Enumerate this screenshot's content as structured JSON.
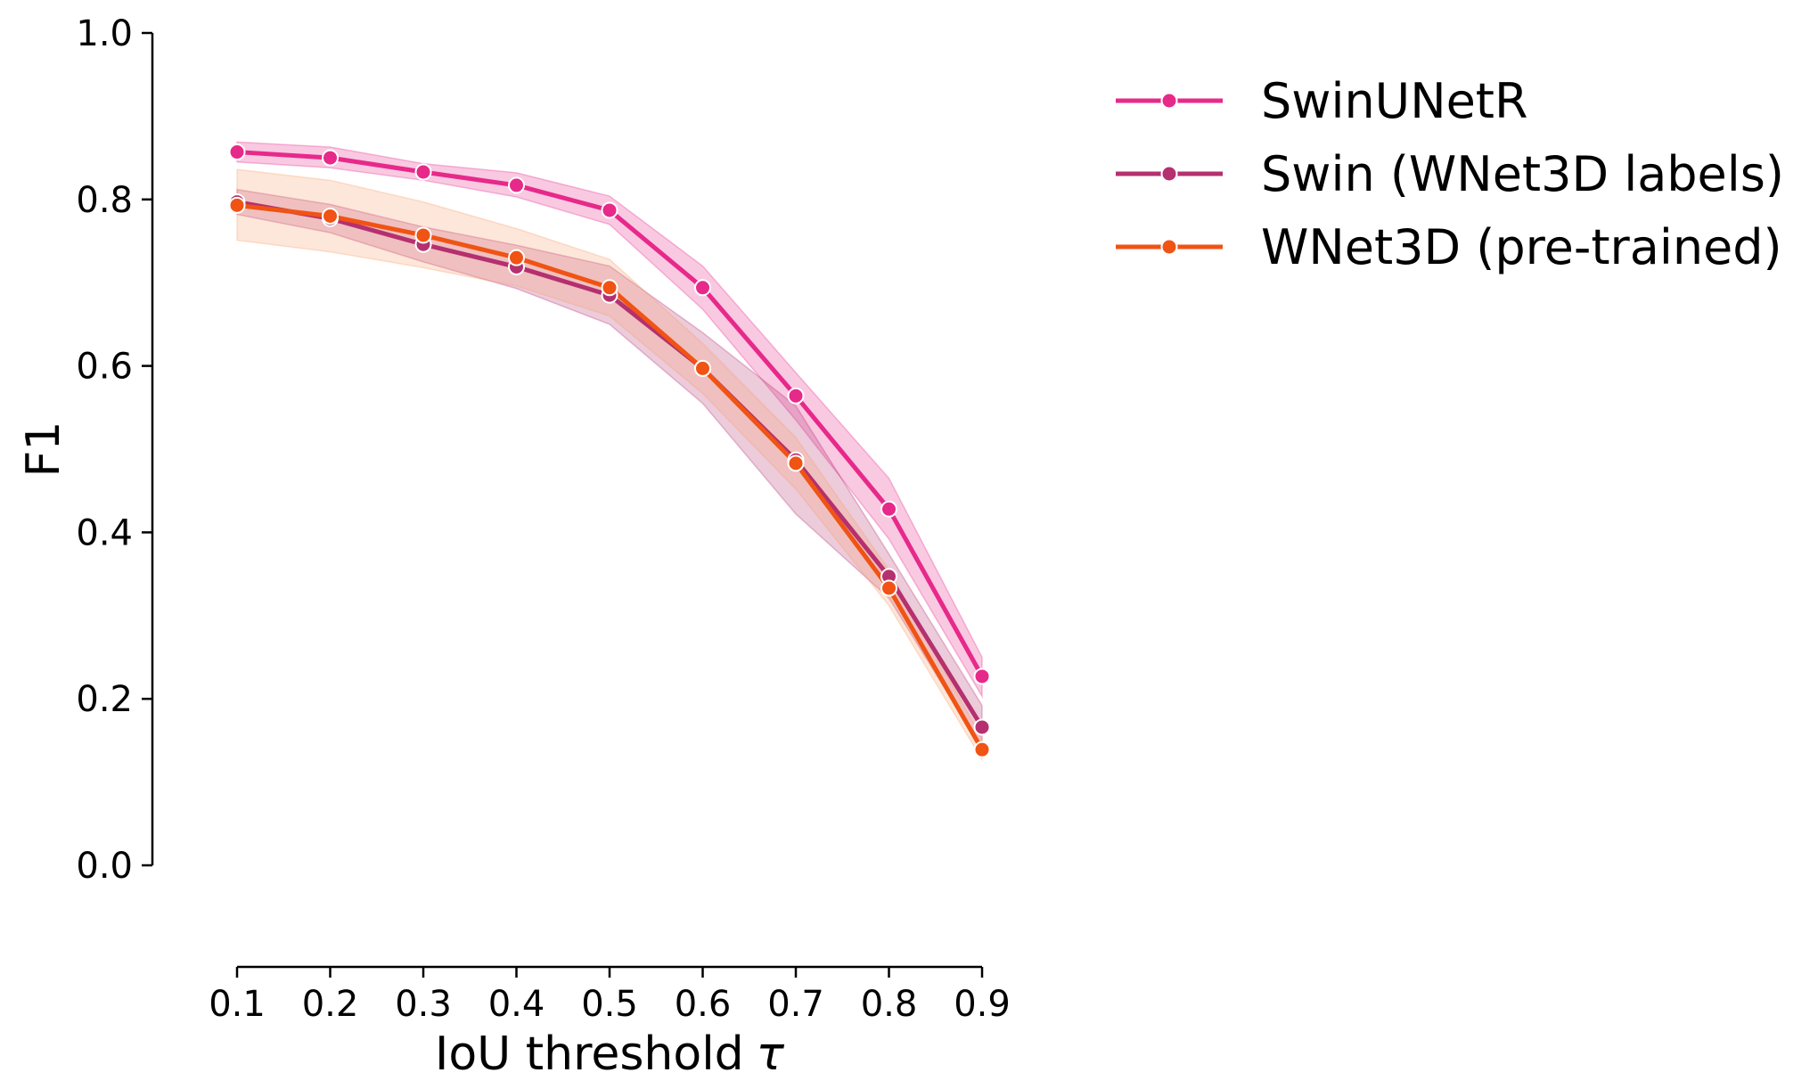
{
  "chart_data": {
    "type": "line",
    "title": "",
    "xlabel": "IoU threshold",
    "xlabel_symbol": "τ",
    "ylabel": "F1",
    "x": [
      0.1,
      0.2,
      0.3,
      0.4,
      0.5,
      0.6,
      0.7,
      0.8,
      0.9
    ],
    "x_tick_labels": [
      "0.1",
      "0.2",
      "0.3",
      "0.4",
      "0.5",
      "0.6",
      "0.7",
      "0.8",
      "0.9"
    ],
    "y_tick_labels": [
      "0.0",
      "0.2",
      "0.4",
      "0.6",
      "0.8",
      "1.0"
    ],
    "y_ticks": [
      0.0,
      0.2,
      0.4,
      0.6,
      0.8,
      1.0
    ],
    "xlim": [
      0.1,
      0.9
    ],
    "ylim": [
      0.0,
      1.0
    ],
    "grid": false,
    "legend_position": "upper right, outside plot",
    "series": [
      {
        "name": "SwinUNetR",
        "color": "#e7298a",
        "values": [
          0.857,
          0.85,
          0.833,
          0.817,
          0.787,
          0.694,
          0.564,
          0.428,
          0.227
        ],
        "ci_lower": [
          0.845,
          0.838,
          0.823,
          0.803,
          0.77,
          0.668,
          0.535,
          0.392,
          0.203
        ],
        "ci_upper": [
          0.869,
          0.863,
          0.843,
          0.832,
          0.804,
          0.72,
          0.592,
          0.465,
          0.25
        ]
      },
      {
        "name": "Swin (WNet3D labels)",
        "color": "#b5306f",
        "values": [
          0.797,
          0.777,
          0.746,
          0.719,
          0.685,
          0.597,
          0.487,
          0.347,
          0.166
        ],
        "ci_lower": [
          0.782,
          0.76,
          0.725,
          0.693,
          0.65,
          0.555,
          0.422,
          0.321,
          0.14
        ],
        "ci_upper": [
          0.812,
          0.794,
          0.767,
          0.745,
          0.72,
          0.64,
          0.552,
          0.374,
          0.192
        ]
      },
      {
        "name": "WNet3D (pre-trained)",
        "color": "#f05314",
        "fill_color": "#f8a06a",
        "values": [
          0.793,
          0.78,
          0.757,
          0.73,
          0.694,
          0.597,
          0.483,
          0.333,
          0.139
        ],
        "ci_lower": [
          0.751,
          0.737,
          0.718,
          0.696,
          0.66,
          0.567,
          0.452,
          0.312,
          0.127
        ],
        "ci_upper": [
          0.836,
          0.823,
          0.797,
          0.765,
          0.728,
          0.627,
          0.514,
          0.355,
          0.152
        ]
      }
    ]
  }
}
